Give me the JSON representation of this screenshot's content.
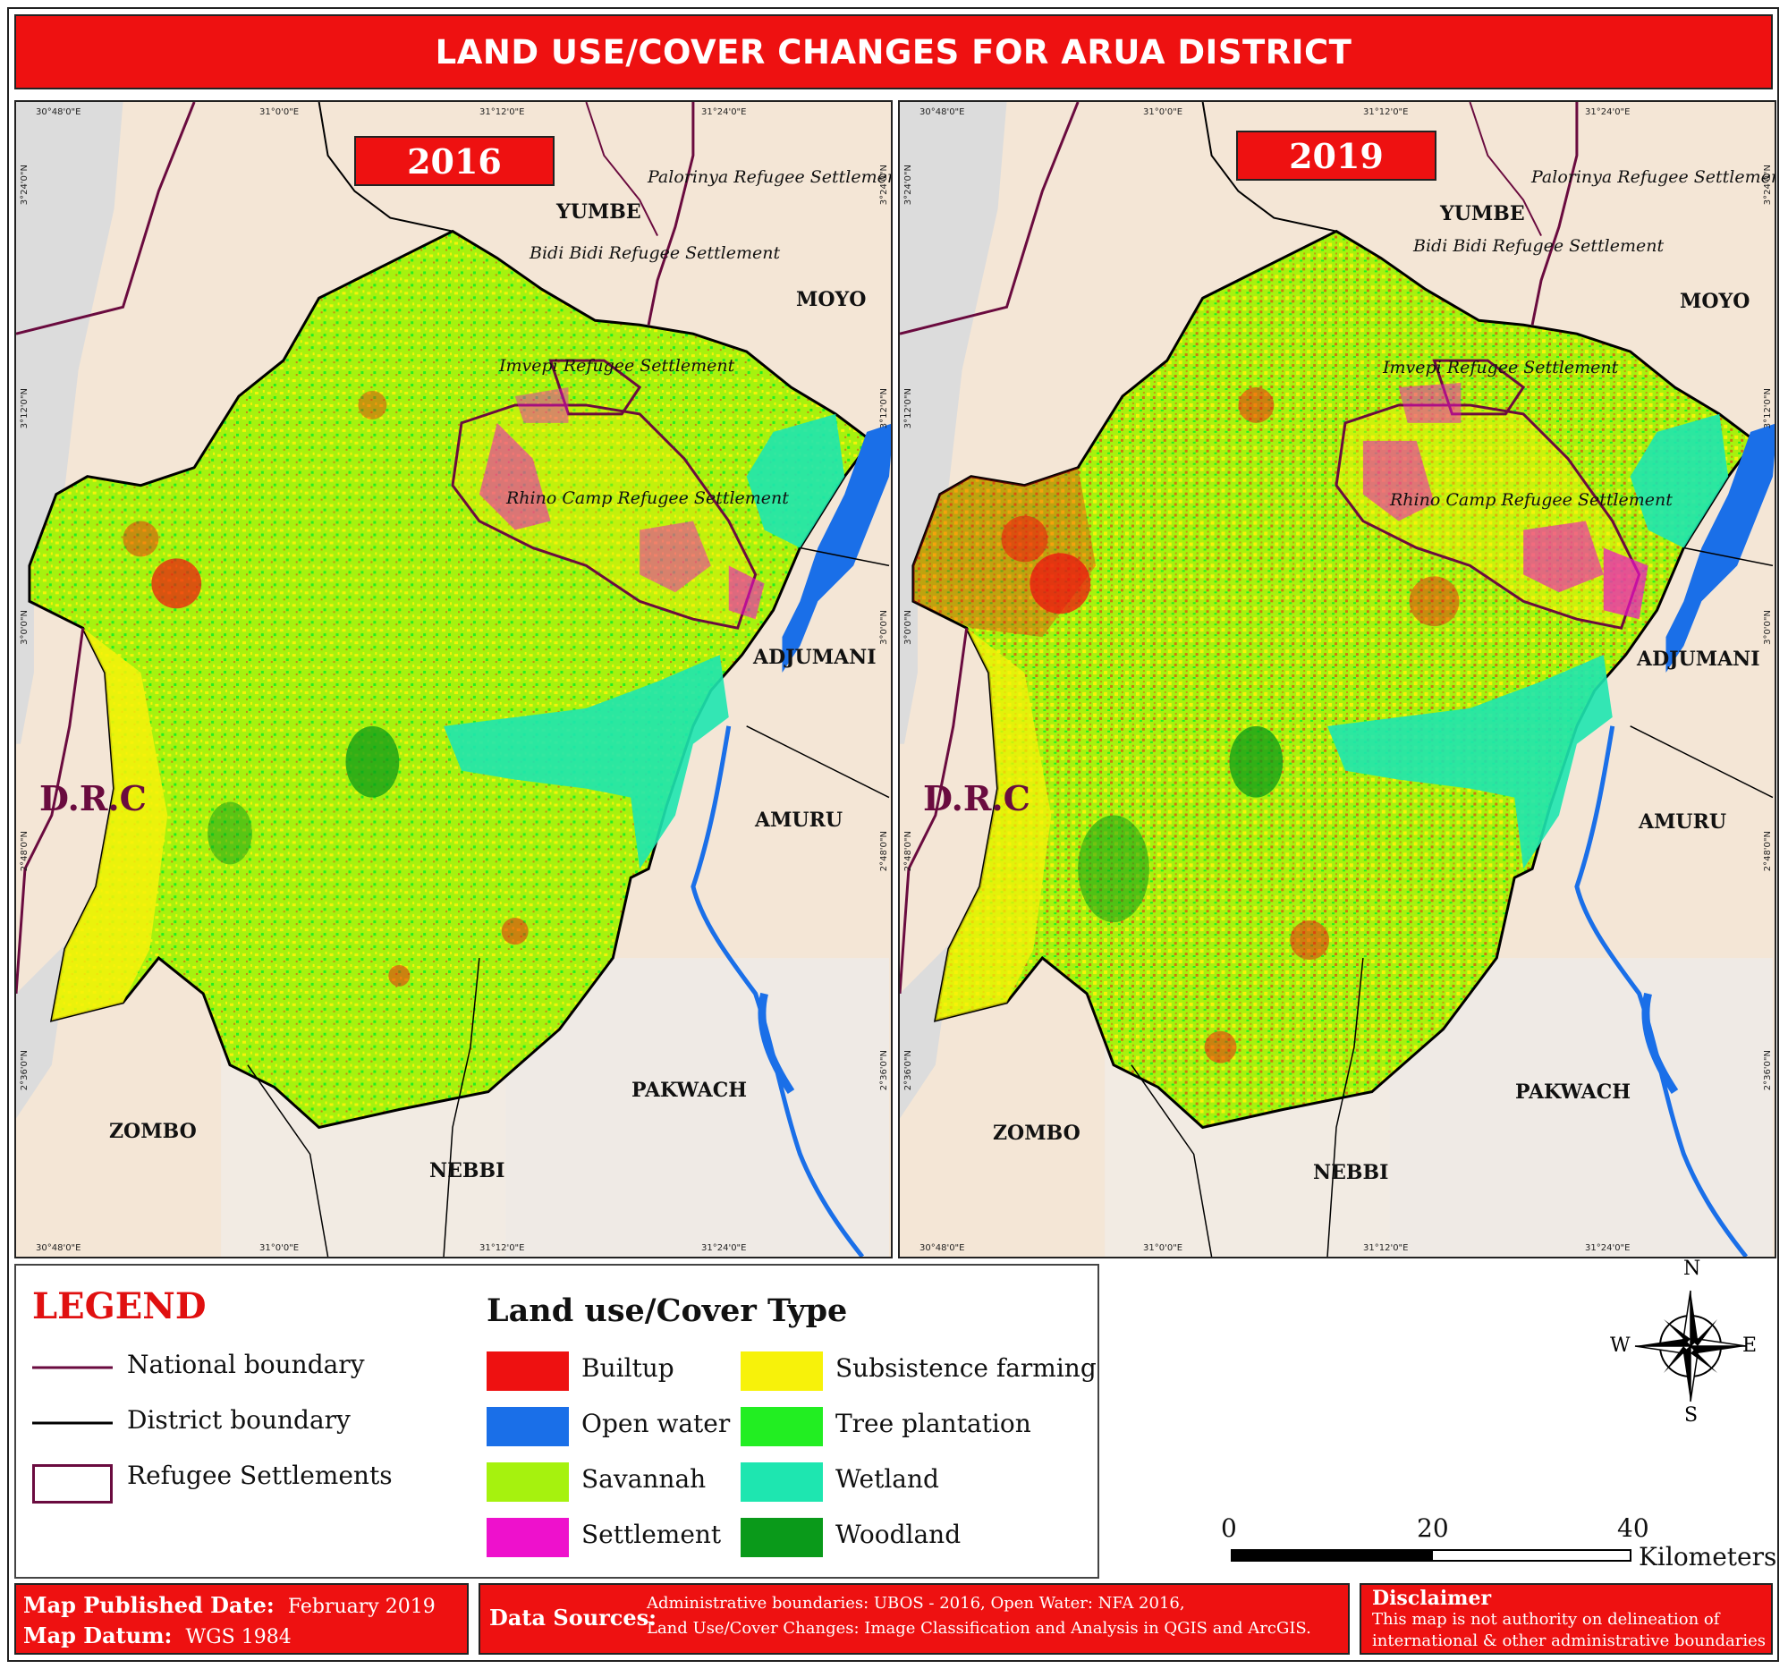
{
  "title": "LAND USE/COVER CHANGES FOR ARUA DISTRICT",
  "panels": [
    {
      "year": "2016",
      "coords_top": [
        "30°48'0\"E",
        "31°0'0\"E",
        "31°12'0\"E",
        "31°24'0\"E"
      ],
      "coords_bottom": [
        "30°48'0\"E",
        "31°0'0\"E",
        "31°12'0\"E",
        "31°24'0\"E"
      ],
      "coords_left": [
        "3°24'0\"N",
        "3°12'0\"N",
        "3°0'0\"N",
        "2°48'0\"N",
        "2°36'0\"N"
      ],
      "coords_right": [
        "3°24'0\"N",
        "3°12'0\"N",
        "3°0'0\"N",
        "2°48'0\"N",
        "2°36'0\"N"
      ]
    },
    {
      "year": "2019",
      "coords_top": [
        "30°48'0\"E",
        "31°0'0\"E",
        "31°12'0\"E",
        "31°24'0\"E"
      ],
      "coords_bottom": [
        "30°48'0\"E",
        "31°0'0\"E",
        "31°12'0\"E",
        "31°24'0\"E"
      ],
      "coords_left": [
        "3°24'0\"N",
        "3°12'0\"N",
        "3°0'0\"N",
        "2°48'0\"N",
        "2°36'0\"N"
      ],
      "coords_right": [
        "3°24'0\"N",
        "3°12'0\"N",
        "3°0'0\"N",
        "2°48'0\"N",
        "2°36'0\"N"
      ]
    }
  ],
  "place_labels": {
    "yumbe": "YUMBE",
    "moyo": "MOYO",
    "adjumani": "ADJUMANI",
    "amuru": "AMURU",
    "pakwach": "PAKWACH",
    "nebbi": "NEBBI",
    "zombo": "ZOMBO",
    "drc": "D.R.C"
  },
  "settlements": {
    "palorinya": "Palorinya Refugee Settlement",
    "bidibidi": "Bidi Bidi Refugee Settlement",
    "imvepi": "Imvepi Refugee Settlement",
    "rhino": "Rhino Camp Refugee Settlement"
  },
  "legend": {
    "title": "LEGEND",
    "lines": [
      {
        "label": "National boundary",
        "color": "#6a0b3f"
      },
      {
        "label": "District boundary",
        "color": "#000000"
      },
      {
        "label": "Refugee Settlements",
        "color": "#6a0b3f"
      }
    ],
    "landuse_title": "Land use/Cover Type",
    "classes": [
      {
        "label": "Builtup",
        "color": "#ee1111"
      },
      {
        "label": "Open water",
        "color": "#1a6fe8"
      },
      {
        "label": "Savannah",
        "color": "#a6f20e"
      },
      {
        "label": "Settlement",
        "color": "#ee11cc"
      },
      {
        "label": "Subsistence farming",
        "color": "#f7f20a"
      },
      {
        "label": "Tree plantation",
        "color": "#22ee22"
      },
      {
        "label": "Wetland",
        "color": "#1ee6b0"
      },
      {
        "label": "Woodland",
        "color": "#0a9a1a"
      }
    ]
  },
  "compass": {
    "n": "N",
    "s": "S",
    "e": "E",
    "w": "W"
  },
  "scale": {
    "ticks": [
      "0",
      "20",
      "40"
    ],
    "unit": "Kilometers"
  },
  "footer": {
    "published_label": "Map Published Date:",
    "published_value": "February 2019",
    "datum_label": "Map Datum:",
    "datum_value": "WGS 1984",
    "sources_label": "Data Sources:",
    "sources_line1": "Administrative boundaries: UBOS - 2016, Open Water: NFA 2016,",
    "sources_line2": "Land Use/Cover Changes: Image Classification and Analysis in QGIS and ArcGIS.",
    "disclaimer_title": "Disclaimer",
    "disclaimer_line1": "This map is not authority on delineation of",
    "disclaimer_line2": "international & other administrative boundaries"
  }
}
